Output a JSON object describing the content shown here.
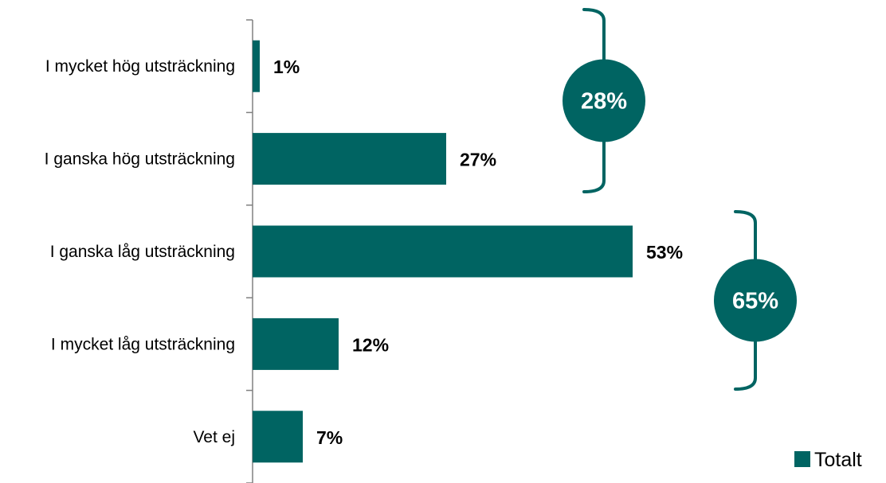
{
  "chart_data": {
    "type": "bar",
    "orientation": "horizontal",
    "categories": [
      "I mycket hög utsträckning",
      "I ganska hög utsträckning",
      "I ganska låg utsträckning",
      "I mycket låg utsträckning",
      "Vet ej"
    ],
    "series": [
      {
        "name": "Totalt",
        "values": [
          1,
          27,
          53,
          12,
          7
        ],
        "color": "#006462"
      }
    ],
    "data_labels": [
      "1%",
      "27%",
      "53%",
      "12%",
      "7%"
    ],
    "value_unit": "%",
    "xlim": [
      0,
      100
    ],
    "grid": false,
    "legend": {
      "position": "bottom-right",
      "label": "Totalt"
    },
    "annotations": [
      {
        "label": "28%",
        "covers_categories": [
          0,
          1
        ]
      },
      {
        "label": "65%",
        "covers_categories": [
          2,
          3
        ]
      }
    ]
  }
}
